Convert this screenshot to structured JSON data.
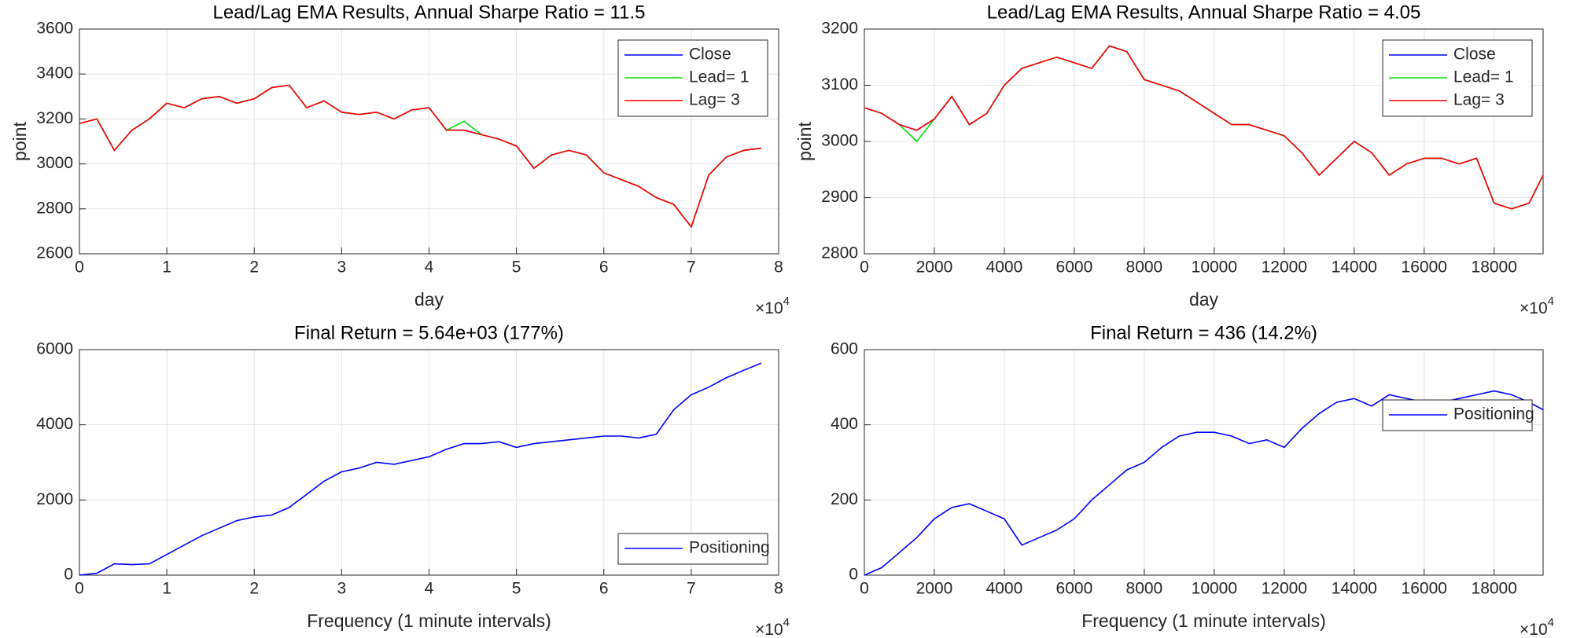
{
  "chart_data": [
    {
      "type": "line",
      "title": "Lead/Lag EMA Results, Annual Sharpe Ratio = 11.5",
      "xlabel": "day",
      "ylabel": "point",
      "x_exponent": {
        "base": "×10",
        "power": "4"
      },
      "x": [
        0,
        2000,
        4000,
        6000,
        8000,
        10000,
        12000,
        14000,
        16000,
        18000,
        20000,
        22000,
        24000,
        26000,
        28000,
        30000,
        32000,
        34000,
        36000,
        38000,
        40000,
        42000,
        44000,
        46000,
        48000,
        50000,
        52000,
        54000,
        56000,
        58000,
        60000,
        62000,
        64000,
        66000,
        68000,
        70000,
        72000,
        74000,
        76000,
        78000
      ],
      "series": [
        {
          "name": "Close",
          "color": "#0000ff",
          "values": [
            3180,
            3200,
            3060,
            3150,
            3200,
            3270,
            3250,
            3290,
            3300,
            3270,
            3290,
            3340,
            3350,
            3250,
            3280,
            3230,
            3220,
            3230,
            3200,
            3240,
            3250,
            3150,
            3150,
            3130,
            3110,
            3080,
            2980,
            3040,
            3060,
            3040,
            2960,
            2930,
            2900,
            2850,
            2820,
            2720,
            2950,
            3030,
            3060,
            3070
          ]
        },
        {
          "name": "Lead= 1",
          "color": "#00dd00",
          "values": [
            3180,
            3200,
            3060,
            3150,
            3200,
            3270,
            3250,
            3290,
            3300,
            3270,
            3290,
            3340,
            3350,
            3250,
            3280,
            3230,
            3220,
            3230,
            3200,
            3240,
            3250,
            3150,
            3190,
            3130,
            3110,
            3080,
            2980,
            3040,
            3060,
            3040,
            2960,
            2930,
            2900,
            2850,
            2820,
            2720,
            2950,
            3030,
            3060,
            3070
          ]
        },
        {
          "name": "Lag= 3",
          "color": "#ff0000",
          "values": [
            3180,
            3200,
            3060,
            3150,
            3200,
            3270,
            3250,
            3290,
            3300,
            3270,
            3290,
            3340,
            3350,
            3250,
            3280,
            3230,
            3220,
            3230,
            3200,
            3240,
            3250,
            3150,
            3150,
            3130,
            3110,
            3080,
            2980,
            3040,
            3060,
            3040,
            2960,
            2930,
            2900,
            2850,
            2820,
            2720,
            2950,
            3030,
            3060,
            3070
          ]
        }
      ],
      "xlim": [
        0,
        80000
      ],
      "ylim": [
        2600,
        3600
      ],
      "xticks": [
        0,
        {
          "value": 10000,
          "label": "1"
        },
        {
          "value": 20000,
          "label": "2"
        },
        {
          "value": 30000,
          "label": "3"
        },
        {
          "value": 40000,
          "label": "4"
        },
        {
          "value": 50000,
          "label": "5"
        },
        {
          "value": 60000,
          "label": "6"
        },
        {
          "value": 70000,
          "label": "7"
        },
        {
          "value": 80000,
          "label": "8"
        }
      ],
      "yticks": [
        2600,
        2800,
        3000,
        3200,
        3400,
        3600
      ],
      "grid": true,
      "legend_loc": "upper right"
    },
    {
      "type": "line",
      "title": "Lead/Lag EMA Results, Annual Sharpe Ratio = 4.05",
      "xlabel": "day",
      "ylabel": "point",
      "x_exponent": {
        "base": "×10",
        "power": "4"
      },
      "x": [
        0,
        500,
        1000,
        1500,
        2000,
        2500,
        3000,
        3500,
        4000,
        4500,
        5000,
        5500,
        6000,
        6500,
        7000,
        7500,
        8000,
        8500,
        9000,
        9500,
        10000,
        10500,
        11000,
        11500,
        12000,
        12500,
        13000,
        13500,
        14000,
        14500,
        15000,
        15500,
        16000,
        16500,
        17000,
        17500,
        18000,
        18500,
        19000,
        19400
      ],
      "series": [
        {
          "name": "Close",
          "color": "#0000ff",
          "values": [
            3060,
            3050,
            3030,
            3020,
            3040,
            3080,
            3030,
            3050,
            3100,
            3130,
            3140,
            3150,
            3140,
            3130,
            3170,
            3160,
            3110,
            3100,
            3090,
            3070,
            3050,
            3030,
            3030,
            3020,
            3010,
            2980,
            2940,
            2970,
            3000,
            2980,
            2940,
            2960,
            2970,
            2970,
            2960,
            2970,
            2890,
            2880,
            2890,
            2940
          ]
        },
        {
          "name": "Lead= 1",
          "color": "#00dd00",
          "values": [
            3060,
            3050,
            3030,
            3000,
            3040,
            3080,
            3030,
            3050,
            3100,
            3130,
            3140,
            3150,
            3140,
            3130,
            3170,
            3160,
            3110,
            3100,
            3090,
            3070,
            3050,
            3030,
            3030,
            3020,
            3010,
            2980,
            2940,
            2970,
            3000,
            2980,
            2940,
            2960,
            2970,
            2970,
            2960,
            2970,
            2890,
            2880,
            2890,
            2940
          ]
        },
        {
          "name": "Lag= 3",
          "color": "#ff0000",
          "values": [
            3060,
            3050,
            3030,
            3020,
            3040,
            3080,
            3030,
            3050,
            3100,
            3130,
            3140,
            3150,
            3140,
            3130,
            3170,
            3160,
            3110,
            3100,
            3090,
            3070,
            3050,
            3030,
            3030,
            3020,
            3010,
            2980,
            2940,
            2970,
            3000,
            2980,
            2940,
            2960,
            2970,
            2970,
            2960,
            2970,
            2890,
            2880,
            2890,
            2940
          ]
        }
      ],
      "xlim": [
        0,
        19400
      ],
      "ylim": [
        2800,
        3200
      ],
      "xticks": [
        0,
        2000.0,
        4000.0,
        6000.0,
        8000.0,
        10000.0,
        12000.0,
        14000.0,
        16000.0,
        18000.0
      ],
      "yticks": [
        2800,
        2900,
        3000,
        3100,
        3200
      ],
      "grid": true,
      "legend_loc": "upper right"
    },
    {
      "type": "line",
      "title": "Final Return = 5.64e+03 (177%)",
      "xlabel": "Frequency (1 minute intervals)",
      "x_exponent": {
        "base": "×10",
        "power": "4"
      },
      "x": [
        0,
        2000,
        4000,
        6000,
        8000,
        10000,
        12000,
        14000,
        16000,
        18000,
        20000,
        22000,
        24000,
        26000,
        28000,
        30000,
        32000,
        34000,
        36000,
        38000,
        40000,
        42000,
        44000,
        46000,
        48000,
        50000,
        52000,
        54000,
        56000,
        58000,
        60000,
        62000,
        64000,
        66000,
        68000,
        70000,
        72000,
        74000,
        76000,
        78000
      ],
      "series": [
        {
          "name": "Positioning",
          "color": "#0000ff",
          "values": [
            0,
            50,
            300,
            280,
            300,
            550,
            800,
            1050,
            1250,
            1450,
            1550,
            1600,
            1800,
            2150,
            2500,
            2750,
            2850,
            3000,
            2950,
            3050,
            3150,
            3350,
            3500,
            3500,
            3550,
            3400,
            3500,
            3550,
            3600,
            3650,
            3700,
            3700,
            3650,
            3750,
            4400,
            4800,
            5000,
            5250,
            5450,
            5640
          ]
        }
      ],
      "xlim": [
        0,
        80000
      ],
      "ylim": [
        0,
        6000
      ],
      "xticks": [
        0,
        {
          "value": 10000,
          "label": "1"
        },
        {
          "value": 20000,
          "label": "2"
        },
        {
          "value": 30000,
          "label": "3"
        },
        {
          "value": 40000,
          "label": "4"
        },
        {
          "value": 50000,
          "label": "5"
        },
        {
          "value": 60000,
          "label": "6"
        },
        {
          "value": 70000,
          "label": "7"
        },
        {
          "value": 80000,
          "label": "8"
        }
      ],
      "yticks": [
        0,
        2000,
        4000,
        6000
      ],
      "grid": true,
      "legend_loc": "lower right"
    },
    {
      "type": "line",
      "title": "Final Return = 436 (14.2%)",
      "xlabel": "Frequency (1 minute intervals)",
      "x_exponent": {
        "base": "×10",
        "power": "4"
      },
      "x": [
        0,
        500,
        1000,
        1500,
        2000,
        2500,
        3000,
        3500,
        4000,
        4500,
        5000,
        5500,
        6000,
        6500,
        7000,
        7500,
        8000,
        8500,
        9000,
        9500,
        10000,
        10500,
        11000,
        11500,
        12000,
        12500,
        13000,
        13500,
        14000,
        14500,
        15000,
        15500,
        16000,
        16500,
        17000,
        17500,
        18000,
        18500,
        19000,
        19400
      ],
      "series": [
        {
          "name": "Positioning",
          "color": "#0000ff",
          "values": [
            0,
            20,
            60,
            100,
            150,
            180,
            190,
            170,
            150,
            80,
            100,
            120,
            150,
            200,
            240,
            280,
            300,
            340,
            370,
            380,
            380,
            370,
            350,
            360,
            340,
            390,
            430,
            460,
            470,
            450,
            480,
            470,
            460,
            460,
            470,
            480,
            490,
            480,
            460,
            440
          ]
        }
      ],
      "xlim": [
        0,
        19400
      ],
      "ylim": [
        0,
        600
      ],
      "xticks": [
        0,
        2000.0,
        4000.0,
        6000.0,
        8000.0,
        10000.0,
        12000.0,
        14000.0,
        16000.0,
        18000.0
      ],
      "yticks": [
        0,
        200,
        400,
        600
      ],
      "grid": true,
      "legend_loc": "upper right"
    }
  ]
}
